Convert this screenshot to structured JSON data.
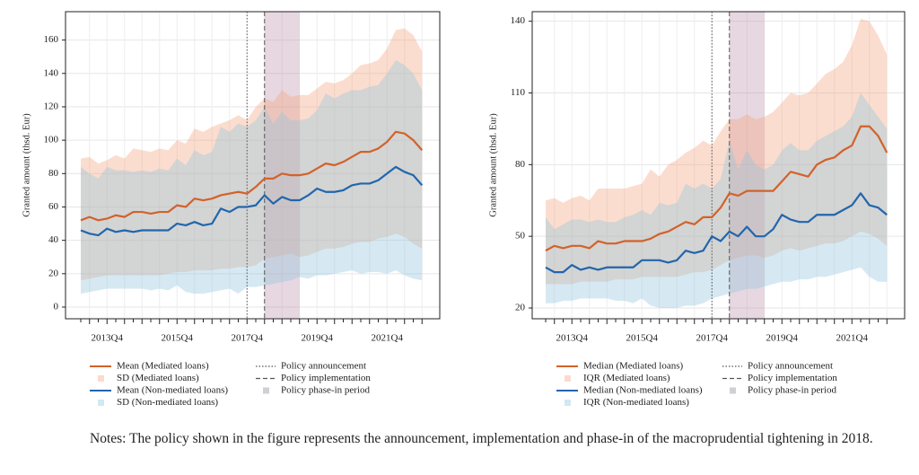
{
  "chart_data": [
    {
      "type": "line",
      "y_label": "Granted amount (thsd. Eur)",
      "categories": [
        null,
        null,
        null,
        "2013Q4",
        null,
        null,
        null,
        null,
        null,
        null,
        null,
        "2015Q4",
        null,
        null,
        null,
        null,
        null,
        null,
        null,
        "2017Q4",
        null,
        null,
        null,
        null,
        null,
        null,
        null,
        "2019Q4",
        null,
        null,
        null,
        null,
        null,
        null,
        null,
        "2021Q4",
        null,
        null,
        null,
        null
      ],
      "series": [
        {
          "name": "Mean (Mediated loans)",
          "color": "#d2622a",
          "values": [
            52,
            54,
            52,
            53,
            55,
            54,
            57,
            57,
            56,
            57,
            57,
            61,
            60,
            65,
            64,
            65,
            67,
            68,
            69,
            68,
            72,
            77,
            77,
            80,
            79,
            79,
            80,
            83,
            86,
            85,
            87,
            90,
            93,
            93,
            95,
            99,
            105,
            104,
            100,
            94
          ]
        },
        {
          "name": "Mean (Non-mediated loans)",
          "color": "#2166ac",
          "values": [
            46,
            44,
            43,
            47,
            45,
            46,
            45,
            46,
            46,
            46,
            46,
            50,
            49,
            51,
            49,
            50,
            59,
            57,
            60,
            60,
            61,
            67,
            62,
            66,
            64,
            64,
            67,
            71,
            69,
            69,
            70,
            73,
            74,
            74,
            76,
            80,
            84,
            81,
            79,
            73
          ]
        }
      ],
      "bands": [
        {
          "name": "SD (Mediated loans)",
          "color": "#f4a582",
          "upper": [
            89,
            90,
            86,
            88,
            91,
            89,
            95,
            94,
            93,
            95,
            94,
            100,
            98,
            107,
            105,
            108,
            110,
            112,
            115,
            112,
            120,
            125,
            123,
            130,
            126,
            127,
            127,
            131,
            135,
            134,
            136,
            140,
            145,
            146,
            148,
            155,
            166,
            167,
            163,
            153
          ],
          "lower": [
            16,
            17,
            18,
            19,
            19,
            19,
            19,
            19,
            19,
            19,
            20,
            21,
            21,
            22,
            22,
            22,
            23,
            23,
            24,
            24,
            25,
            29,
            30,
            31,
            32,
            30,
            31,
            33,
            35,
            35,
            36,
            38,
            39,
            39,
            41,
            42,
            44,
            42,
            38,
            35
          ]
        },
        {
          "name": "SD (Non-mediated loans)",
          "color": "#92c5de",
          "upper": [
            84,
            80,
            77,
            84,
            82,
            82,
            81,
            82,
            81,
            83,
            82,
            89,
            85,
            94,
            91,
            93,
            108,
            105,
            110,
            108,
            112,
            120,
            110,
            117,
            112,
            112,
            113,
            118,
            128,
            125,
            128,
            130,
            130,
            132,
            133,
            140,
            148,
            145,
            140,
            130
          ],
          "lower": [
            8,
            9,
            10,
            11,
            11,
            11,
            11,
            11,
            10,
            11,
            10,
            13,
            9,
            8,
            8,
            9,
            10,
            11,
            8,
            12,
            12,
            13,
            14,
            15,
            16,
            18,
            17,
            19,
            19,
            20,
            21,
            22,
            20,
            21,
            21,
            20,
            22,
            19,
            17,
            16
          ]
        }
      ],
      "policy_lines": [
        {
          "name": "Policy announcement",
          "x": 19,
          "style": "dotted"
        },
        {
          "name": "Policy implementation",
          "x": 21,
          "style": "dashed"
        }
      ],
      "phase_in": {
        "name": "Policy phase-in period",
        "x": [
          21,
          25
        ],
        "color": "#b07a98"
      },
      "ylim": [
        -7,
        177
      ],
      "yticks": [
        0,
        20,
        40,
        60,
        80,
        100,
        120,
        140,
        160
      ],
      "grid": true
    },
    {
      "type": "line",
      "y_label": "Granted amount (thsd. Eur)",
      "categories": [
        null,
        null,
        null,
        "2013Q4",
        null,
        null,
        null,
        null,
        null,
        null,
        null,
        "2015Q4",
        null,
        null,
        null,
        null,
        null,
        null,
        null,
        "2017Q4",
        null,
        null,
        null,
        null,
        null,
        null,
        null,
        "2019Q4",
        null,
        null,
        null,
        null,
        null,
        null,
        null,
        "2021Q4",
        null,
        null,
        null,
        null
      ],
      "series": [
        {
          "name": "Median (Mediated loans)",
          "color": "#d2622a",
          "values": [
            44,
            46,
            45,
            46,
            46,
            45,
            48,
            47,
            47,
            48,
            48,
            48,
            49,
            51,
            52,
            54,
            56,
            55,
            58,
            58,
            62,
            68,
            67,
            69,
            69,
            69,
            69,
            73,
            77,
            76,
            75,
            80,
            82,
            83,
            86,
            88,
            96,
            96,
            92,
            85
          ]
        },
        {
          "name": "Median (Non-mediated loans)",
          "color": "#2166ac",
          "values": [
            37,
            35,
            35,
            38,
            36,
            37,
            36,
            37,
            37,
            37,
            37,
            40,
            40,
            40,
            39,
            40,
            44,
            43,
            44,
            50,
            48,
            52,
            50,
            54,
            50,
            50,
            53,
            59,
            57,
            56,
            56,
            59,
            59,
            59,
            61,
            63,
            68,
            63,
            62,
            59
          ]
        }
      ],
      "bands": [
        {
          "name": "IQR (Mediated loans)",
          "color": "#f4a582",
          "upper": [
            65,
            66,
            64,
            66,
            67,
            65,
            70,
            70,
            70,
            70,
            71,
            72,
            78,
            75,
            80,
            82,
            85,
            87,
            90,
            88,
            94,
            99,
            99,
            101,
            99,
            100,
            102,
            106,
            110,
            109,
            110,
            114,
            118,
            120,
            123,
            130,
            141,
            140,
            134,
            126
          ],
          "lower": [
            30,
            30,
            30,
            30,
            31,
            31,
            31,
            31,
            32,
            32,
            32,
            33,
            33,
            33,
            33,
            33,
            34,
            35,
            35,
            36,
            38,
            40,
            41,
            42,
            42,
            41,
            42,
            44,
            45,
            44,
            45,
            46,
            47,
            47,
            48,
            50,
            52,
            51,
            49,
            46
          ]
        },
        {
          "name": "IQR (Non-mediated loans)",
          "color": "#92c5de",
          "upper": [
            58,
            53,
            55,
            57,
            57,
            56,
            57,
            56,
            56,
            58,
            59,
            61,
            59,
            64,
            63,
            64,
            72,
            70,
            72,
            70,
            74,
            90,
            78,
            86,
            80,
            78,
            80,
            86,
            89,
            86,
            86,
            90,
            92,
            94,
            96,
            100,
            110,
            105,
            100,
            95
          ],
          "lower": [
            22,
            22,
            23,
            23,
            24,
            24,
            24,
            24,
            23,
            23,
            22,
            24,
            21,
            20,
            20,
            20,
            21,
            21,
            22,
            24,
            25,
            26,
            27,
            28,
            28,
            29,
            30,
            31,
            31,
            32,
            32,
            33,
            33,
            34,
            35,
            36,
            37,
            33,
            31,
            31
          ]
        }
      ],
      "policy_lines": [
        {
          "name": "Policy announcement",
          "x": 19,
          "style": "dotted"
        },
        {
          "name": "Policy implementation",
          "x": 21,
          "style": "dashed"
        }
      ],
      "phase_in": {
        "name": "Policy phase-in period",
        "x": [
          21,
          25
        ],
        "color": "#b07a98"
      },
      "ylim": [
        15.5,
        144
      ],
      "yticks": [
        20,
        50,
        80,
        110,
        140
      ],
      "grid": true
    }
  ],
  "notes": "Notes: The policy shown in the figure represents the announcement, implementation and phase-in of the macroprudential tightening in 2018."
}
